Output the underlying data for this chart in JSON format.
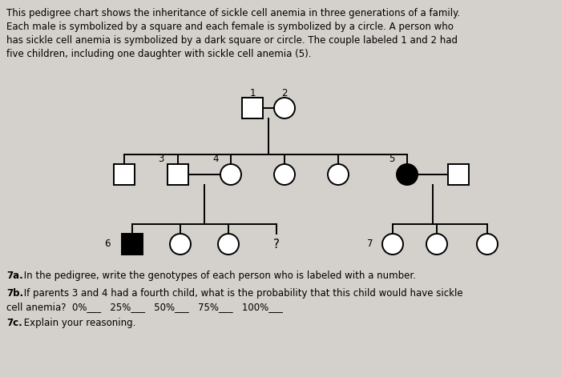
{
  "bg_color": "#d4d0cb",
  "text_color": "#000000",
  "description_lines": [
    "This pedigree chart shows the inheritance of sickle cell anemia in three generations of a family.",
    "Each male is symbolized by a square and each female is symbolized by a circle. A person who",
    "has sickle cell anemia is symbolized by a dark square or circle. The couple labeled 1 and 2 had",
    "five children, including one daughter with sickle cell anemia (5)."
  ],
  "q7a_bold": "7a.",
  "q7a_rest": " In the pedigree, write the genotypes of each person who is labeled with a number.",
  "q7b_bold": "7b.",
  "q7b_line1_rest": " If parents 3 and 4 had a fourth child, what is the probability that this child would have sickle",
  "q7b_line2": "cell anemia?  0%___   25%___   50%___   75%___   100%___",
  "q7c_bold": "7c.",
  "q7c_rest": " Explain your reasoning.",
  "lw": 1.4,
  "sym_r": 0.055,
  "text_fontsize": 8.5,
  "label_fontsize": 8.5
}
